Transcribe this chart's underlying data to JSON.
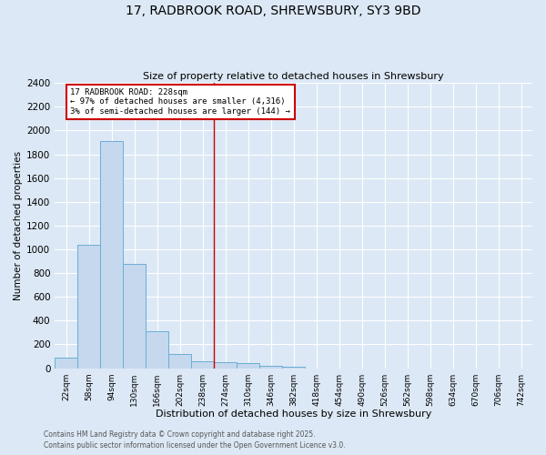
{
  "title_line1": "17, RADBROOK ROAD, SHREWSBURY, SY3 9BD",
  "title_line2": "Size of property relative to detached houses in Shrewsbury",
  "xlabel": "Distribution of detached houses by size in Shrewsbury",
  "ylabel": "Number of detached properties",
  "bar_labels": [
    "22sqm",
    "58sqm",
    "94sqm",
    "130sqm",
    "166sqm",
    "202sqm",
    "238sqm",
    "274sqm",
    "310sqm",
    "346sqm",
    "382sqm",
    "418sqm",
    "454sqm",
    "490sqm",
    "526sqm",
    "562sqm",
    "598sqm",
    "634sqm",
    "670sqm",
    "706sqm",
    "742sqm"
  ],
  "bar_values": [
    90,
    1035,
    1910,
    880,
    310,
    120,
    60,
    50,
    40,
    20,
    15,
    0,
    0,
    0,
    0,
    0,
    0,
    0,
    0,
    0,
    0
  ],
  "bar_color": "#c5d8ed",
  "bar_edge_color": "#6aaed6",
  "reference_line_x": 6.5,
  "reference_line_color": "#cc0000",
  "annotation_text": "17 RADBROOK ROAD: 228sqm\n← 97% of detached houses are smaller (4,316)\n3% of semi-detached houses are larger (144) →",
  "annotation_box_color": "#cc0000",
  "annotation_text_color": "#000000",
  "ylim": [
    0,
    2400
  ],
  "yticks": [
    0,
    200,
    400,
    600,
    800,
    1000,
    1200,
    1400,
    1600,
    1800,
    2000,
    2200,
    2400
  ],
  "footer_line1": "Contains HM Land Registry data © Crown copyright and database right 2025.",
  "footer_line2": "Contains public sector information licensed under the Open Government Licence v3.0.",
  "background_color": "#dce8f5",
  "plot_bg_color": "#dce8f5",
  "grid_color": "#ffffff"
}
